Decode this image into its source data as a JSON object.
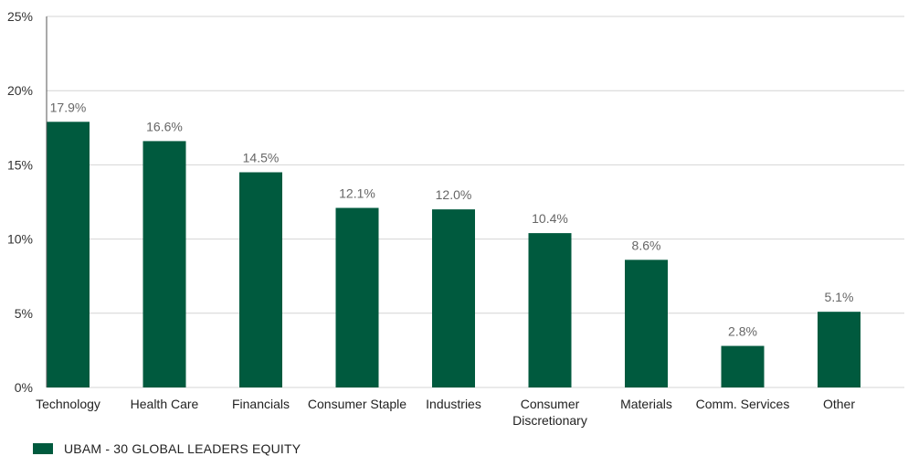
{
  "chart_data": {
    "type": "bar",
    "categories": [
      [
        "Technology"
      ],
      [
        "Health Care"
      ],
      [
        "Financials"
      ],
      [
        "Consumer Staple"
      ],
      [
        "Industries"
      ],
      [
        "Consumer",
        "Discretionary"
      ],
      [
        "Materials"
      ],
      [
        "Comm. Services"
      ],
      [
        "Other"
      ]
    ],
    "series": [
      {
        "name": "UBAM - 30 GLOBAL LEADERS EQUITY",
        "values": [
          17.9,
          16.6,
          14.5,
          12.1,
          12.0,
          10.4,
          8.6,
          2.8,
          5.1
        ]
      }
    ],
    "data_labels": [
      "17.9%",
      "16.6%",
      "14.5%",
      "12.1%",
      "12.0%",
      "10.4%",
      "8.6%",
      "2.8%",
      "5.1%"
    ],
    "ylim": [
      0,
      25
    ],
    "yticks": [
      0,
      5,
      10,
      15,
      20,
      25
    ],
    "ytick_labels": [
      "0%",
      "5%",
      "10%",
      "15%",
      "20%",
      "25%"
    ],
    "grid": true,
    "legend_position": "bottom-left",
    "colors": {
      "bar": "#005a3e",
      "grid": "#d4d4d4",
      "axis": "#555555"
    }
  }
}
